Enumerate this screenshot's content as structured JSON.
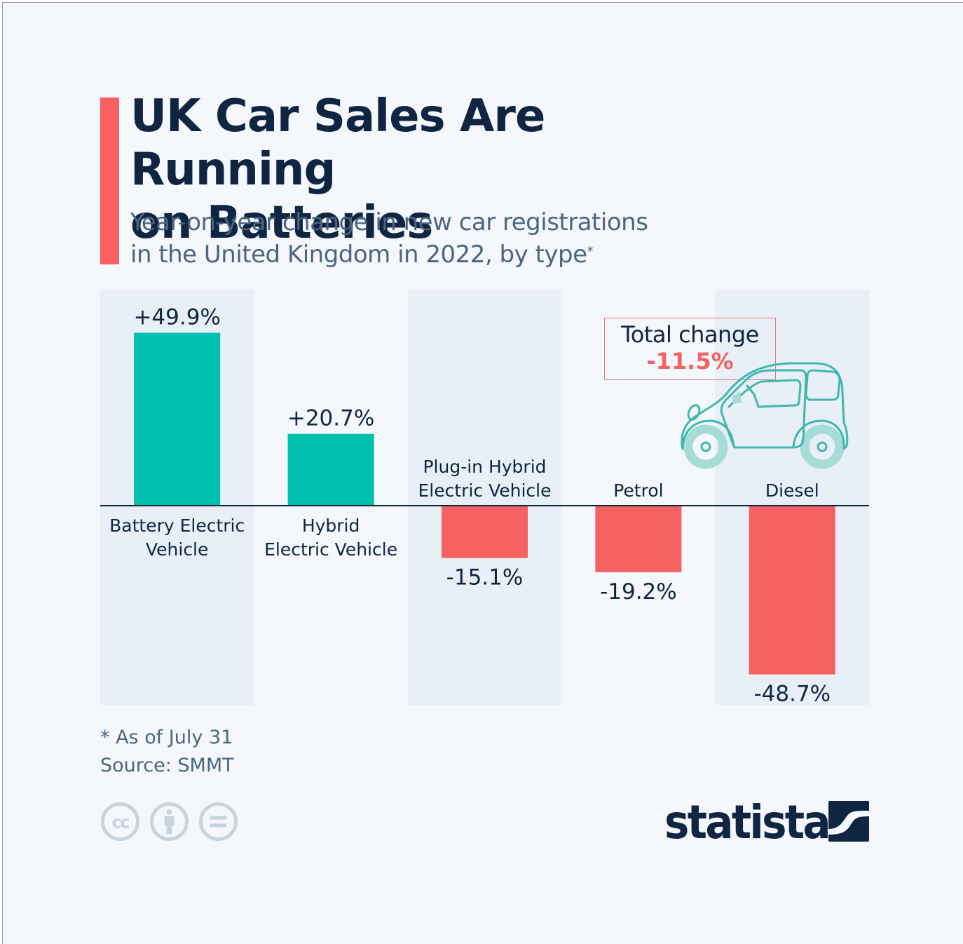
{
  "header": {
    "title_line1": "UK Car Sales Are Running",
    "title_line2": "on Batteries",
    "subtitle_line1": "Year-on-year change in new car registrations",
    "subtitle_line2": "in the United Kingdom in 2022, by type",
    "subtitle_marker": "*"
  },
  "annotation": {
    "label": "Total change",
    "value": "-11.5%",
    "icon": "car-icon"
  },
  "footer": {
    "note": "* As of July 31",
    "source": "Source: SMMT",
    "license_icons": [
      "cc-icon",
      "attribution-icon",
      "no-derivatives-icon"
    ],
    "brand": "statista"
  },
  "colors": {
    "positive": "#00bfad",
    "negative": "#f66161",
    "text_dark": "#0f2542",
    "text_muted": "#4b6582",
    "band": "#e9eff7",
    "background": "#f4f7fb",
    "accent": "#f66161"
  },
  "chart_data": {
    "type": "bar",
    "title": "UK Car Sales Are Running on Batteries",
    "subtitle": "Year-on-year change in new car registrations in the United Kingdom in 2022, by type*",
    "categories": [
      "Battery Electric Vehicle",
      "Hybrid Electric Vehicle",
      "Plug-in Hybrid Electric Vehicle",
      "Petrol",
      "Diesel"
    ],
    "category_lines": [
      [
        "Battery Electric",
        "Vehicle"
      ],
      [
        "Hybrid",
        "Electric Vehicle"
      ],
      [
        "Plug-in Hybrid",
        "Electric Vehicle"
      ],
      [
        "Petrol"
      ],
      [
        "Diesel"
      ]
    ],
    "values": [
      49.9,
      20.7,
      -15.1,
      -19.2,
      -48.7
    ],
    "data_labels": [
      "+49.9%",
      "+20.7%",
      "-15.1%",
      "-19.2%",
      "-48.7%"
    ],
    "unit": "%",
    "xlabel": "",
    "ylabel": "",
    "ylim": [
      -58,
      62
    ],
    "grid": false,
    "legend": "none",
    "annotations": [
      {
        "text": "Total change -11.5%",
        "value": -11.5
      }
    ]
  }
}
